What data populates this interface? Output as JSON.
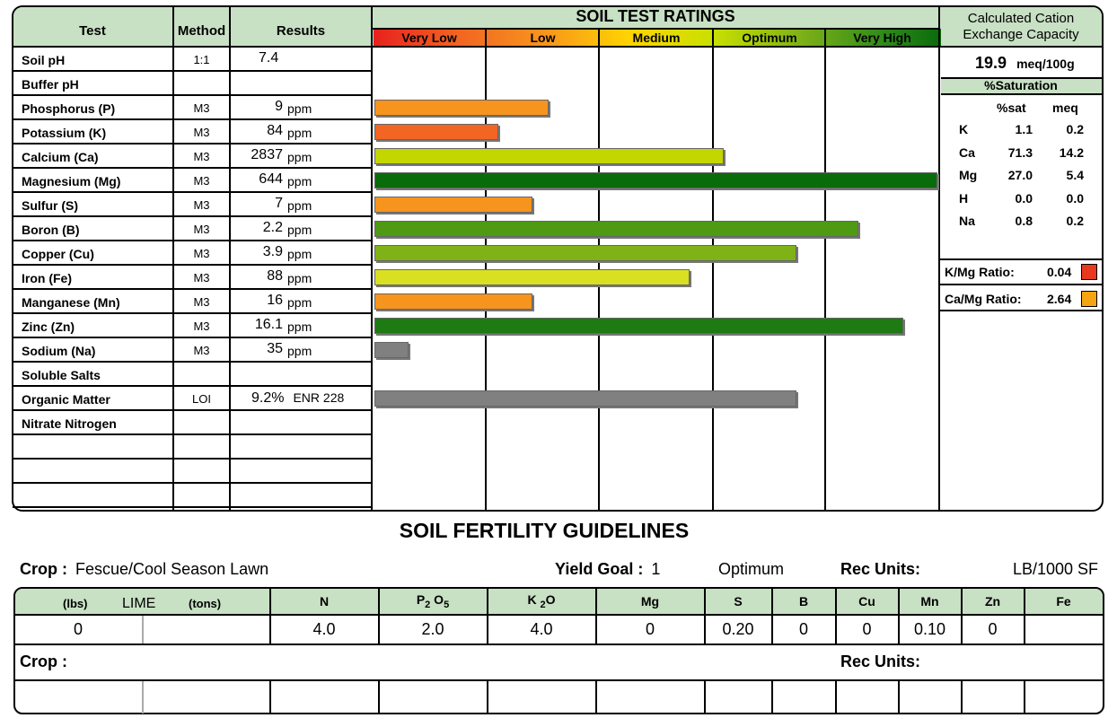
{
  "table": {
    "headers": {
      "test": "Test",
      "method": "Method",
      "results": "Results"
    },
    "rows": [
      {
        "test": "Soil pH",
        "method": "1:1",
        "value": "7.4",
        "unit": ""
      },
      {
        "test": "Buffer pH",
        "method": "",
        "value": "",
        "unit": ""
      },
      {
        "test": "Phosphorus (P)",
        "method": "M3",
        "value": "9",
        "unit": "ppm"
      },
      {
        "test": "Potassium (K)",
        "method": "M3",
        "value": "84",
        "unit": "ppm"
      },
      {
        "test": "Calcium (Ca)",
        "method": "M3",
        "value": "2837",
        "unit": "ppm"
      },
      {
        "test": "Magnesium (Mg)",
        "method": "M3",
        "value": "644",
        "unit": "ppm"
      },
      {
        "test": "Sulfur (S)",
        "method": "M3",
        "value": "7",
        "unit": "ppm"
      },
      {
        "test": "Boron (B)",
        "method": "M3",
        "value": "2.2",
        "unit": "ppm"
      },
      {
        "test": "Copper (Cu)",
        "method": "M3",
        "value": "3.9",
        "unit": "ppm"
      },
      {
        "test": "Iron (Fe)",
        "method": "M3",
        "value": "88",
        "unit": "ppm"
      },
      {
        "test": "Manganese (Mn)",
        "method": "M3",
        "value": "16",
        "unit": "ppm"
      },
      {
        "test": "Zinc (Zn)",
        "method": "M3",
        "value": "16.1",
        "unit": "ppm"
      },
      {
        "test": "Sodium (Na)",
        "method": "M3",
        "value": "35",
        "unit": "ppm"
      },
      {
        "test": "Soluble Salts",
        "method": "",
        "value": "",
        "unit": ""
      },
      {
        "test": "Organic Matter",
        "method": "LOI",
        "value": "9.2%",
        "unit": "ENR 228"
      },
      {
        "test": "Nitrate Nitrogen",
        "method": "",
        "value": "",
        "unit": ""
      }
    ]
  },
  "ratings": {
    "title": "SOIL TEST RATINGS",
    "categories": [
      "Very Low",
      "Low",
      "Medium",
      "Optimum",
      "Very High"
    ]
  },
  "chart_data": {
    "type": "bar",
    "title": "SOIL TEST RATINGS",
    "scale_categories": [
      "Very Low",
      "Low",
      "Medium",
      "Optimum",
      "Very High"
    ],
    "scale_max": 5,
    "bars": [
      {
        "test": "Phosphorus (P)",
        "value": 1.55,
        "color": "#f7941d"
      },
      {
        "test": "Potassium (K)",
        "value": 1.1,
        "color": "#f26522"
      },
      {
        "test": "Calcium (Ca)",
        "value": 3.1,
        "color": "#c3d600"
      },
      {
        "test": "Magnesium (Mg)",
        "value": 5.0,
        "color": "#0a6b0a"
      },
      {
        "test": "Sulfur (S)",
        "value": 1.4,
        "color": "#f7941d"
      },
      {
        "test": "Boron (B)",
        "value": 4.3,
        "color": "#4e9a12"
      },
      {
        "test": "Copper (Cu)",
        "value": 3.75,
        "color": "#7fb217"
      },
      {
        "test": "Iron (Fe)",
        "value": 2.8,
        "color": "#d9e021"
      },
      {
        "test": "Manganese (Mn)",
        "value": 1.4,
        "color": "#f7941d"
      },
      {
        "test": "Zinc (Zn)",
        "value": 4.7,
        "color": "#1e7a12"
      },
      {
        "test": "Sodium (Na)",
        "value": 0.3,
        "color": "#808080"
      },
      {
        "test": "Organic Matter",
        "value": 3.75,
        "color": "#808080"
      }
    ]
  },
  "cec": {
    "title_line1": "Calculated Cation",
    "title_line2": "Exchange Capacity",
    "value": "19.9",
    "unit": "meq/100g",
    "saturation_title": "%Saturation",
    "col_sat": "%sat",
    "col_meq": "meq",
    "rows": [
      {
        "ion": "K",
        "sat": "1.1",
        "meq": "0.2"
      },
      {
        "ion": "Ca",
        "sat": "71.3",
        "meq": "14.2"
      },
      {
        "ion": "Mg",
        "sat": "27.0",
        "meq": "5.4"
      },
      {
        "ion": "H",
        "sat": "0.0",
        "meq": "0.0"
      },
      {
        "ion": "Na",
        "sat": "0.8",
        "meq": "0.2"
      }
    ],
    "kmg_label": "K/Mg Ratio:",
    "kmg_value": "0.04",
    "kmg_color": "#e8381e",
    "camg_label": "Ca/Mg Ratio:",
    "camg_value": "2.64",
    "camg_color": "#f5a511"
  },
  "guidelines": {
    "title": "SOIL FERTILITY GUIDELINES",
    "crop_label": "Crop :",
    "crop_value": "Fescue/Cool Season Lawn",
    "yield_label": "Yield Goal :",
    "yield_value": "1",
    "yield_rating": "Optimum",
    "rec_units_label": "Rec Units:",
    "rec_units_value": "LB/1000 SF",
    "lime_lbs": "(lbs)",
    "lime_label": "LIME",
    "lime_tons": "(tons)",
    "n": "N",
    "p_main": "P",
    "p_sub1": "2",
    "p_o": "O",
    "p_sub2": "5",
    "k_main": "K",
    "k_sub": "2",
    "k_o": "O",
    "mg": "Mg",
    "s": "S",
    "b": "B",
    "cu": "Cu",
    "mn": "Mn",
    "zn": "Zn",
    "fe": "Fe",
    "values": [
      "0",
      "4.0",
      "2.0",
      "4.0",
      "0",
      "0.20",
      "0",
      "0",
      "0.10",
      "0"
    ],
    "crop2_label": "Crop :",
    "rec_units2_label": "Rec Units:"
  }
}
